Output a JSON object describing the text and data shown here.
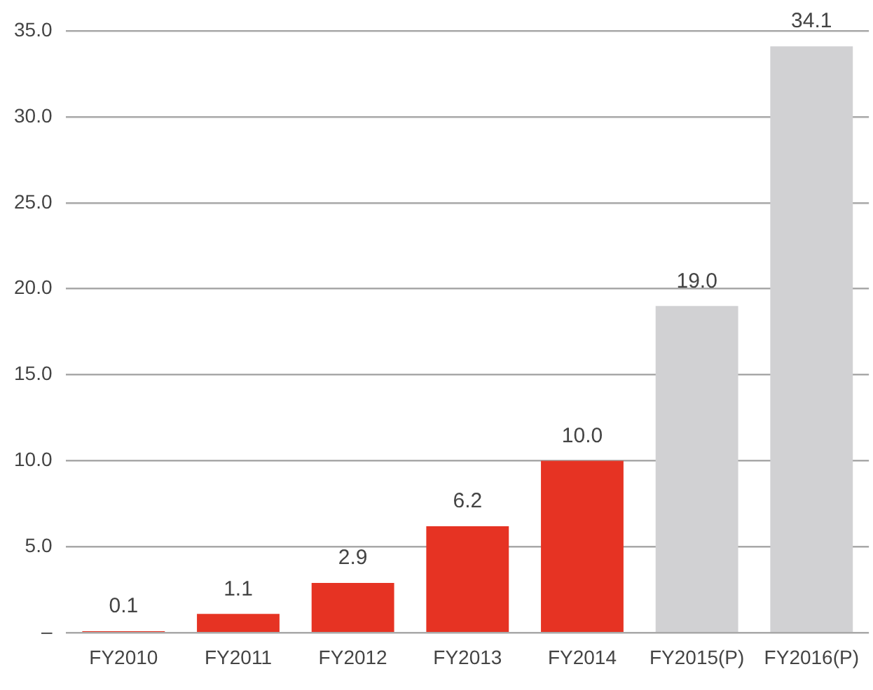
{
  "chart_data": {
    "type": "bar",
    "categories": [
      "FY2010",
      "FY2011",
      "FY2012",
      "FY2013",
      "FY2014",
      "FY2015(P)",
      "FY2016(P)"
    ],
    "values": [
      0.1,
      1.1,
      2.9,
      6.2,
      10.0,
      19.0,
      34.1
    ],
    "colors": [
      "#e63323",
      "#e63323",
      "#e63323",
      "#e63323",
      "#e63323",
      "#d1d1d3",
      "#d1d1d3"
    ],
    "value_labels": [
      "0.1",
      "1.1",
      "2.9",
      "6.2",
      "10.0",
      "19.0",
      "34.1"
    ],
    "ylim": [
      0,
      35
    ],
    "yticks": [
      {
        "value": 0,
        "label": "–"
      },
      {
        "value": 5,
        "label": "5.0"
      },
      {
        "value": 10,
        "label": "10.0"
      },
      {
        "value": 15,
        "label": "15.0"
      },
      {
        "value": 20,
        "label": "20.0"
      },
      {
        "value": 25,
        "label": "25.0"
      },
      {
        "value": 30,
        "label": "30.0"
      },
      {
        "value": 35,
        "label": "35.0"
      }
    ],
    "grid": "y",
    "legend": false
  }
}
